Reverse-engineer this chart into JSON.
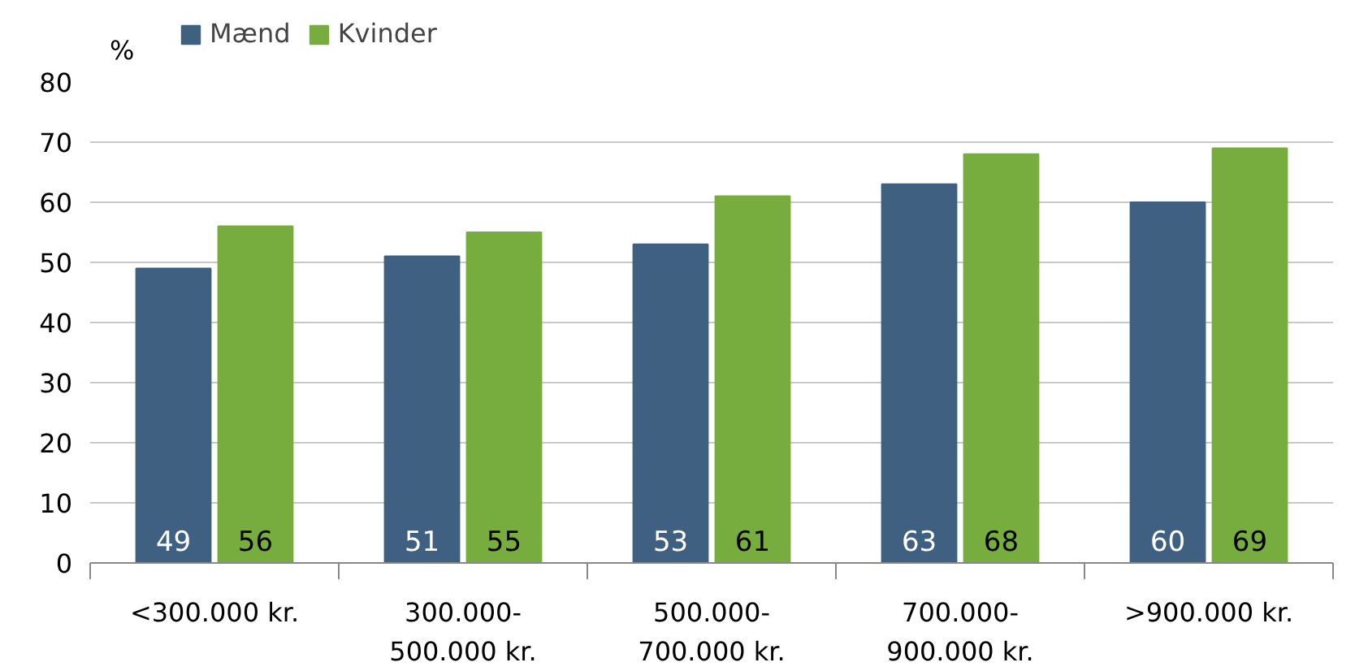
{
  "chart_data": {
    "type": "bar",
    "ylabel": "%",
    "categories": [
      "<300.000 kr.",
      "300.000-\n500.000 kr.",
      "500.000-\n700.000 kr.",
      "700.000-\n900.000 kr.",
      ">900.000 kr."
    ],
    "series": [
      {
        "name": "Mænd",
        "color": "#3f6080",
        "values": [
          49,
          51,
          53,
          63,
          60
        ]
      },
      {
        "name": "Kvinder",
        "color": "#77ad3f",
        "values": [
          56,
          55,
          61,
          68,
          69
        ]
      }
    ],
    "ylim": [
      0,
      80
    ],
    "yticks": [
      0,
      10,
      20,
      30,
      40,
      50,
      60,
      70,
      80
    ],
    "grid": "y",
    "legend": "top left",
    "data_labels": true
  }
}
